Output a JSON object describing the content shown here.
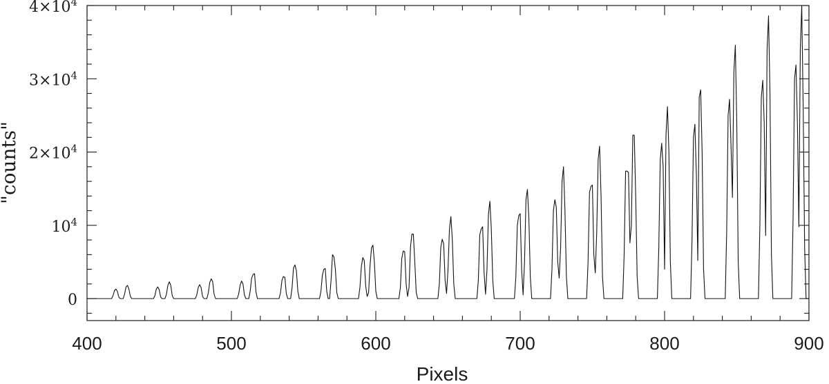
{
  "chart_data": {
    "type": "line",
    "xlabel": "Pixels",
    "ylabel": "\"counts\"",
    "xlim": [
      400,
      900
    ],
    "ylim": [
      -3000,
      40000
    ],
    "grid": false,
    "x_ticks": [
      {
        "value": 400,
        "label": "400"
      },
      {
        "value": 500,
        "label": "500"
      },
      {
        "value": 600,
        "label": "600"
      },
      {
        "value": 700,
        "label": "700"
      },
      {
        "value": 800,
        "label": "800"
      },
      {
        "value": 900,
        "label": "900"
      }
    ],
    "y_ticks": [
      {
        "value": 0,
        "mantissa": "0",
        "exponent": ""
      },
      {
        "value": 10000,
        "mantissa": "10",
        "exponent": "4"
      },
      {
        "value": 20000,
        "mantissa": "2×10",
        "exponent": "4"
      },
      {
        "value": 30000,
        "mantissa": "3×10",
        "exponent": "4"
      },
      {
        "value": 40000,
        "mantissa": "4×10",
        "exponent": "4"
      }
    ],
    "series": [
      {
        "values": [
          [
            400,
            0
          ],
          [
            417,
            0
          ],
          [
            418,
            400
          ],
          [
            419,
            1100
          ],
          [
            420,
            1300
          ],
          [
            421,
            1000
          ],
          [
            422,
            200
          ],
          [
            423,
            0
          ],
          [
            425,
            0
          ],
          [
            426,
            600
          ],
          [
            427,
            1600
          ],
          [
            428,
            1800
          ],
          [
            429,
            1300
          ],
          [
            430,
            300
          ],
          [
            431,
            0
          ],
          [
            446,
            0
          ],
          [
            447,
            400
          ],
          [
            448,
            1300
          ],
          [
            449,
            1600
          ],
          [
            450,
            1200
          ],
          [
            451,
            200
          ],
          [
            452,
            0
          ],
          [
            454,
            0
          ],
          [
            455,
            600
          ],
          [
            456,
            1800
          ],
          [
            457,
            2300
          ],
          [
            458,
            1800
          ],
          [
            459,
            400
          ],
          [
            460,
            0
          ],
          [
            475,
            0
          ],
          [
            476,
            500
          ],
          [
            477,
            1500
          ],
          [
            478,
            1900
          ],
          [
            479,
            1500
          ],
          [
            480,
            300
          ],
          [
            481,
            0
          ],
          [
            483,
            0
          ],
          [
            484,
            800
          ],
          [
            485,
            2200
          ],
          [
            486,
            2700
          ],
          [
            487,
            2300
          ],
          [
            488,
            600
          ],
          [
            489,
            0
          ],
          [
            504,
            0
          ],
          [
            505,
            600
          ],
          [
            506,
            1800
          ],
          [
            507,
            2400
          ],
          [
            508,
            2000
          ],
          [
            509,
            500
          ],
          [
            510,
            0
          ],
          [
            512,
            0
          ],
          [
            513,
            1000
          ],
          [
            514,
            2800
          ],
          [
            515,
            3300
          ],
          [
            516,
            3400
          ],
          [
            517,
            900
          ],
          [
            518,
            0
          ],
          [
            533,
            0
          ],
          [
            534,
            800
          ],
          [
            535,
            2500
          ],
          [
            536,
            3000
          ],
          [
            537,
            2900
          ],
          [
            538,
            700
          ],
          [
            539,
            0
          ],
          [
            541,
            0
          ],
          [
            542,
            1500
          ],
          [
            543,
            4200
          ],
          [
            544,
            4600
          ],
          [
            545,
            3800
          ],
          [
            546,
            1000
          ],
          [
            547,
            0
          ],
          [
            561,
            0
          ],
          [
            562,
            1000
          ],
          [
            563,
            3200
          ],
          [
            564,
            4000
          ],
          [
            565,
            4100
          ],
          [
            566,
            1000
          ],
          [
            567,
            0
          ],
          [
            568,
            0
          ],
          [
            569,
            2500
          ],
          [
            570,
            6000
          ],
          [
            571,
            5700
          ],
          [
            572,
            4000
          ],
          [
            573,
            800
          ],
          [
            574,
            0
          ],
          [
            588,
            0
          ],
          [
            589,
            1500
          ],
          [
            590,
            4400
          ],
          [
            591,
            5600
          ],
          [
            592,
            5200
          ],
          [
            593,
            1700
          ],
          [
            594,
            300
          ],
          [
            595,
            800
          ],
          [
            596,
            4500
          ],
          [
            597,
            6900
          ],
          [
            598,
            7300
          ],
          [
            599,
            5000
          ],
          [
            600,
            1000
          ],
          [
            601,
            0
          ],
          [
            616,
            0
          ],
          [
            617,
            1500
          ],
          [
            618,
            5500
          ],
          [
            619,
            6500
          ],
          [
            620,
            6400
          ],
          [
            621,
            2000
          ],
          [
            622,
            300
          ],
          [
            623,
            1500
          ],
          [
            624,
            7000
          ],
          [
            625,
            8800
          ],
          [
            626,
            8800
          ],
          [
            627,
            5000
          ],
          [
            628,
            800
          ],
          [
            629,
            0
          ],
          [
            643,
            0
          ],
          [
            644,
            2000
          ],
          [
            645,
            7000
          ],
          [
            646,
            8100
          ],
          [
            647,
            7500
          ],
          [
            648,
            2500
          ],
          [
            649,
            700
          ],
          [
            650,
            4000
          ],
          [
            651,
            9500
          ],
          [
            652,
            11200
          ],
          [
            653,
            8000
          ],
          [
            654,
            2000
          ],
          [
            655,
            0
          ],
          [
            670,
            0
          ],
          [
            671,
            2500
          ],
          [
            672,
            8700
          ],
          [
            673,
            9500
          ],
          [
            674,
            9800
          ],
          [
            675,
            3500
          ],
          [
            676,
            600
          ],
          [
            677,
            4000
          ],
          [
            678,
            11500
          ],
          [
            679,
            13300
          ],
          [
            680,
            9500
          ],
          [
            681,
            2500
          ],
          [
            682,
            0
          ],
          [
            696,
            0
          ],
          [
            697,
            3000
          ],
          [
            698,
            10000
          ],
          [
            699,
            11300
          ],
          [
            700,
            11600
          ],
          [
            701,
            4000
          ],
          [
            702,
            500
          ],
          [
            703,
            5000
          ],
          [
            704,
            13500
          ],
          [
            705,
            14900
          ],
          [
            706,
            11000
          ],
          [
            707,
            3000
          ],
          [
            708,
            0
          ],
          [
            721,
            0
          ],
          [
            722,
            4000
          ],
          [
            723,
            12000
          ],
          [
            724,
            13500
          ],
          [
            725,
            12500
          ],
          [
            726,
            5000
          ],
          [
            727,
            2800
          ],
          [
            728,
            7000
          ],
          [
            729,
            16000
          ],
          [
            730,
            18000
          ],
          [
            731,
            12000
          ],
          [
            732,
            3000
          ],
          [
            733,
            0
          ],
          [
            746,
            0
          ],
          [
            747,
            5000
          ],
          [
            748,
            14500
          ],
          [
            749,
            15300
          ],
          [
            750,
            15500
          ],
          [
            751,
            6000
          ],
          [
            752,
            3500
          ],
          [
            753,
            9000
          ],
          [
            754,
            19000
          ],
          [
            755,
            20800
          ],
          [
            756,
            14000
          ],
          [
            757,
            3000
          ],
          [
            758,
            0
          ],
          [
            771,
            0
          ],
          [
            772,
            6000
          ],
          [
            773,
            17400
          ],
          [
            774,
            17400
          ],
          [
            775,
            17200
          ],
          [
            776,
            7600
          ],
          [
            777,
            10000
          ],
          [
            778,
            22300
          ],
          [
            779,
            22300
          ],
          [
            780,
            14000
          ],
          [
            781,
            3000
          ],
          [
            782,
            0
          ],
          [
            795,
            0
          ],
          [
            796,
            7000
          ],
          [
            797,
            19000
          ],
          [
            798,
            21200
          ],
          [
            799,
            18000
          ],
          [
            800,
            4000
          ],
          [
            801,
            22500
          ],
          [
            802,
            26200
          ],
          [
            803,
            20000
          ],
          [
            804,
            5000
          ],
          [
            805,
            0
          ],
          [
            818,
            0
          ],
          [
            819,
            8000
          ],
          [
            820,
            22000
          ],
          [
            821,
            23800
          ],
          [
            822,
            17000
          ],
          [
            823,
            5200
          ],
          [
            824,
            27500
          ],
          [
            825,
            28500
          ],
          [
            826,
            20000
          ],
          [
            827,
            4000
          ],
          [
            828,
            0
          ],
          [
            842,
            0
          ],
          [
            843,
            9000
          ],
          [
            844,
            25000
          ],
          [
            845,
            27200
          ],
          [
            846,
            21000
          ],
          [
            847,
            13800
          ],
          [
            848,
            31000
          ],
          [
            849,
            34600
          ],
          [
            850,
            24000
          ],
          [
            851,
            5000
          ],
          [
            852,
            0
          ],
          [
            865,
            0
          ],
          [
            866,
            10000
          ],
          [
            867,
            27500
          ],
          [
            868,
            29800
          ],
          [
            869,
            24000
          ],
          [
            870,
            8600
          ],
          [
            871,
            34000
          ],
          [
            872,
            38600
          ],
          [
            873,
            28000
          ],
          [
            874,
            6000
          ],
          [
            875,
            0
          ],
          [
            888,
            0
          ],
          [
            889,
            11000
          ],
          [
            890,
            30000
          ],
          [
            891,
            31900
          ],
          [
            892,
            24000
          ],
          [
            893,
            9800
          ],
          [
            894,
            34000
          ],
          [
            895,
            40000
          ],
          [
            896,
            26000
          ],
          [
            897,
            7000
          ],
          [
            898,
            0
          ],
          [
            900,
            0
          ]
        ]
      }
    ]
  }
}
